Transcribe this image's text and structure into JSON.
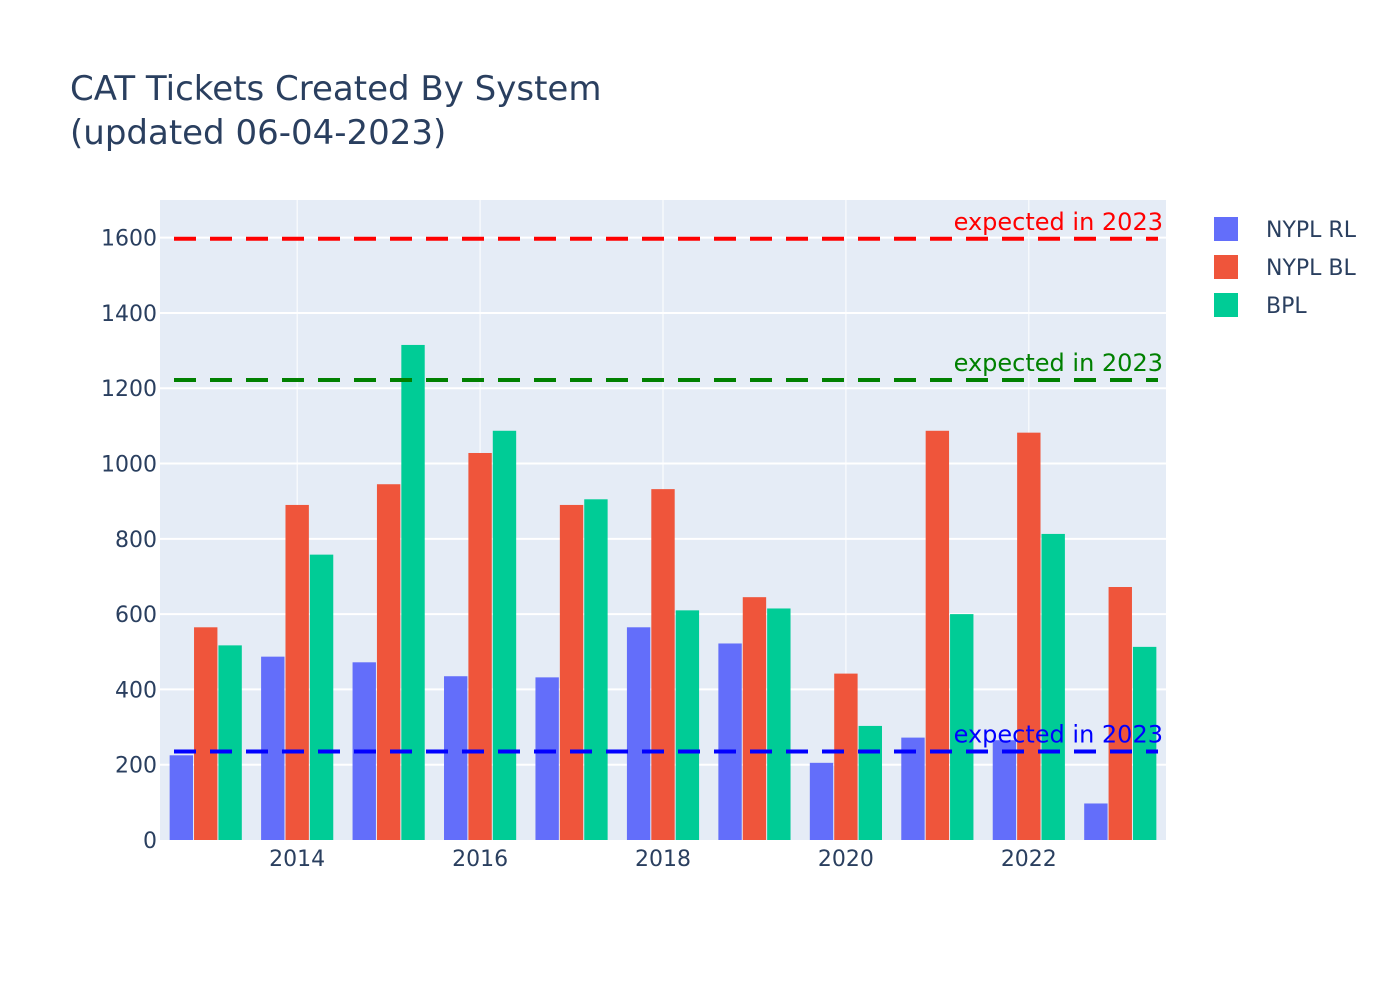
{
  "chart_data": {
    "type": "bar",
    "title_line1": "CAT Tickets Created By System",
    "title_line2": "(updated 06-04-2023)",
    "xlabel": "",
    "ylabel": "",
    "x": [
      2013,
      2014,
      2015,
      2016,
      2017,
      2018,
      2019,
      2020,
      2021,
      2022,
      2023
    ],
    "x_tick_labels": [
      "2014",
      "2016",
      "2018",
      "2020",
      "2022"
    ],
    "x_tick_values": [
      2014,
      2016,
      2018,
      2020,
      2022
    ],
    "y_tick_labels": [
      "0",
      "200",
      "400",
      "600",
      "800",
      "1000",
      "1200",
      "1400",
      "1600"
    ],
    "y_tick_values": [
      0,
      200,
      400,
      600,
      800,
      1000,
      1200,
      1400,
      1600
    ],
    "xlim": [
      2012.5,
      2023.5
    ],
    "ylim": [
      0,
      1700
    ],
    "grid": true,
    "legend_position": "top-right",
    "series": [
      {
        "name": "NYPL RL",
        "color": "#636efa",
        "values": [
          225,
          487,
          472,
          435,
          432,
          565,
          522,
          205,
          272,
          265,
          97
        ]
      },
      {
        "name": "NYPL BL",
        "color": "#ef553b",
        "values": [
          565,
          890,
          945,
          1028,
          890,
          932,
          645,
          442,
          1087,
          1082,
          672
        ]
      },
      {
        "name": "BPL",
        "color": "#00cc96",
        "values": [
          517,
          758,
          1315,
          1087,
          905,
          610,
          615,
          303,
          600,
          813,
          513
        ]
      }
    ],
    "reference_lines": [
      {
        "value": 1597,
        "color": "#ff0000",
        "label": "expected in 2023"
      },
      {
        "value": 1222,
        "color": "#008000",
        "label": "expected in 2023"
      },
      {
        "value": 235,
        "color": "#0000ff",
        "label": "expected in 2023"
      }
    ],
    "colors": {
      "plot_background": "#e5ecf6",
      "gridline": "#ffffff",
      "text": "#2a3f5f"
    }
  }
}
